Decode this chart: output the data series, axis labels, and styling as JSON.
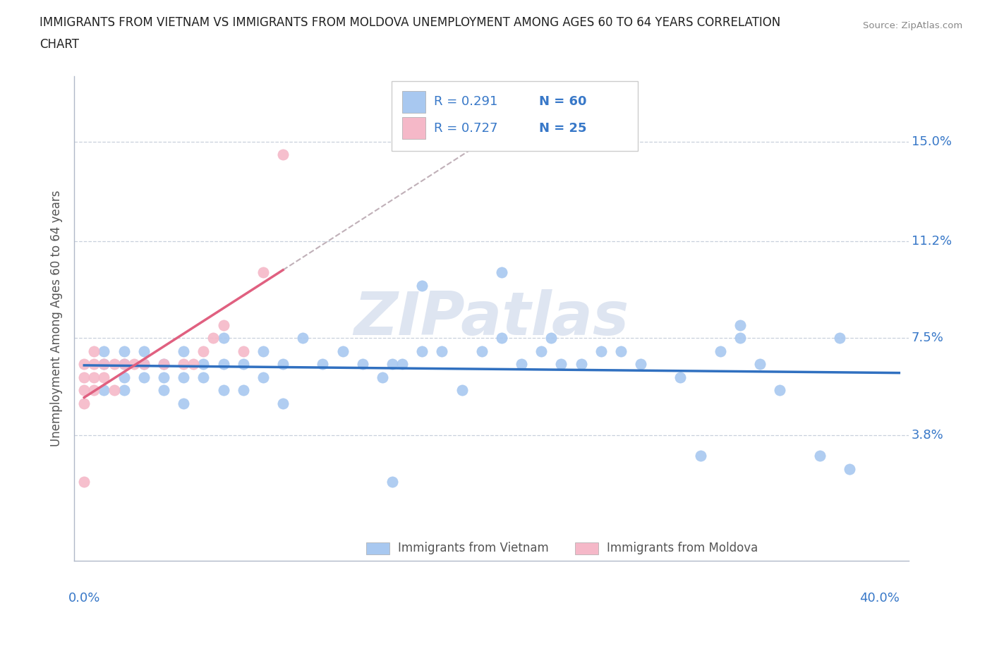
{
  "title_line1": "IMMIGRANTS FROM VIETNAM VS IMMIGRANTS FROM MOLDOVA UNEMPLOYMENT AMONG AGES 60 TO 64 YEARS CORRELATION",
  "title_line2": "CHART",
  "source": "Source: ZipAtlas.com",
  "ylabel": "Unemployment Among Ages 60 to 64 years",
  "xlim": [
    -0.005,
    0.415
  ],
  "ylim": [
    -0.01,
    0.175
  ],
  "yticks": [
    0.038,
    0.075,
    0.112,
    0.15
  ],
  "ytick_labels": [
    "3.8%",
    "7.5%",
    "11.2%",
    "15.0%"
  ],
  "xticks": [
    0.0,
    0.05,
    0.1,
    0.15,
    0.2,
    0.25,
    0.3,
    0.35,
    0.4
  ],
  "vietnam_color": "#a8c8f0",
  "moldova_color": "#f5b8c8",
  "trend_vietnam_color": "#3070c0",
  "trend_moldova_color": "#e06080",
  "trend_extrapolated_color": "#c0b0b8",
  "legend_color": "#3878c8",
  "watermark_color": "#c8d4e8",
  "vietnam_x": [
    0.01,
    0.01,
    0.01,
    0.02,
    0.02,
    0.02,
    0.02,
    0.03,
    0.03,
    0.03,
    0.04,
    0.04,
    0.04,
    0.05,
    0.05,
    0.05,
    0.06,
    0.06,
    0.07,
    0.07,
    0.07,
    0.08,
    0.08,
    0.09,
    0.09,
    0.1,
    0.1,
    0.11,
    0.12,
    0.13,
    0.14,
    0.15,
    0.155,
    0.16,
    0.17,
    0.18,
    0.19,
    0.2,
    0.21,
    0.22,
    0.23,
    0.235,
    0.24,
    0.25,
    0.27,
    0.28,
    0.3,
    0.31,
    0.32,
    0.33,
    0.33,
    0.34,
    0.35,
    0.37,
    0.385,
    0.17,
    0.21,
    0.26,
    0.38,
    0.155
  ],
  "vietnam_y": [
    0.055,
    0.065,
    0.07,
    0.055,
    0.06,
    0.065,
    0.07,
    0.06,
    0.065,
    0.07,
    0.055,
    0.06,
    0.065,
    0.05,
    0.06,
    0.07,
    0.06,
    0.065,
    0.055,
    0.065,
    0.075,
    0.055,
    0.065,
    0.06,
    0.07,
    0.05,
    0.065,
    0.075,
    0.065,
    0.07,
    0.065,
    0.06,
    0.065,
    0.065,
    0.07,
    0.07,
    0.055,
    0.07,
    0.075,
    0.065,
    0.07,
    0.075,
    0.065,
    0.065,
    0.07,
    0.065,
    0.06,
    0.03,
    0.07,
    0.075,
    0.08,
    0.065,
    0.055,
    0.03,
    0.025,
    0.095,
    0.1,
    0.07,
    0.075,
    0.02
  ],
  "moldova_x": [
    0.0,
    0.0,
    0.0,
    0.0,
    0.0,
    0.005,
    0.005,
    0.005,
    0.005,
    0.01,
    0.01,
    0.015,
    0.015,
    0.02,
    0.025,
    0.03,
    0.04,
    0.05,
    0.055,
    0.06,
    0.065,
    0.07,
    0.08,
    0.09,
    0.1
  ],
  "moldova_y": [
    0.02,
    0.05,
    0.055,
    0.06,
    0.065,
    0.055,
    0.06,
    0.065,
    0.07,
    0.06,
    0.065,
    0.055,
    0.065,
    0.065,
    0.065,
    0.065,
    0.065,
    0.065,
    0.065,
    0.07,
    0.075,
    0.08,
    0.07,
    0.1,
    0.145
  ]
}
